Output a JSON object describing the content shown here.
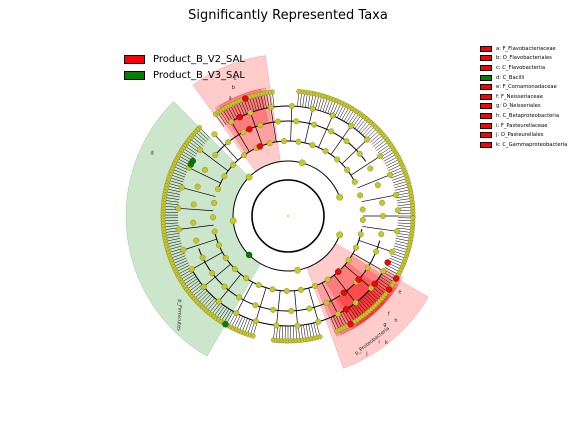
{
  "chart_data": {
    "type": "cladogram",
    "title": "Significantly Represented Taxa",
    "classes": [
      {
        "name": "Product_B_V2_SAL",
        "color": "#ff0000"
      },
      {
        "name": "Product_B_V3_SAL",
        "color": "#008000"
      }
    ],
    "taxa": [
      {
        "letter": "a",
        "label": "a: F_Flavobacteriaceae",
        "class": "Product_B_V2_SAL"
      },
      {
        "letter": "b",
        "label": "b: O_Flavobacteriales",
        "class": "Product_B_V2_SAL"
      },
      {
        "letter": "c",
        "label": "c: C_Flavobacteriia",
        "class": "Product_B_V2_SAL"
      },
      {
        "letter": "d",
        "label": "d: C_Bacilli",
        "class": "Product_B_V3_SAL"
      },
      {
        "letter": "e",
        "label": "e: F_Comamonadaceae",
        "class": "Product_B_V2_SAL"
      },
      {
        "letter": "f",
        "label": "f: F_Neisseriaceae",
        "class": "Product_B_V2_SAL"
      },
      {
        "letter": "g",
        "label": "g: O_Neisseriales",
        "class": "Product_B_V2_SAL"
      },
      {
        "letter": "h",
        "label": "h: C_Betaproteobacteria",
        "class": "Product_B_V2_SAL"
      },
      {
        "letter": "i",
        "label": "i: F_Pasteurellaceae",
        "class": "Product_B_V2_SAL"
      },
      {
        "letter": "j",
        "label": "j: O_Pasteurellales",
        "class": "Product_B_V2_SAL"
      },
      {
        "letter": "k",
        "label": "k: C_Gammaproteobacteria",
        "class": "Product_B_V2_SAL"
      }
    ],
    "phylum_labels": [
      "p_Firmicutes",
      "p_Proteobacteria"
    ],
    "colors": {
      "node_default": "#c8c81e",
      "branch": "#000000",
      "enriched_V2": "#ff0000",
      "enriched_V3": "#008000"
    }
  }
}
